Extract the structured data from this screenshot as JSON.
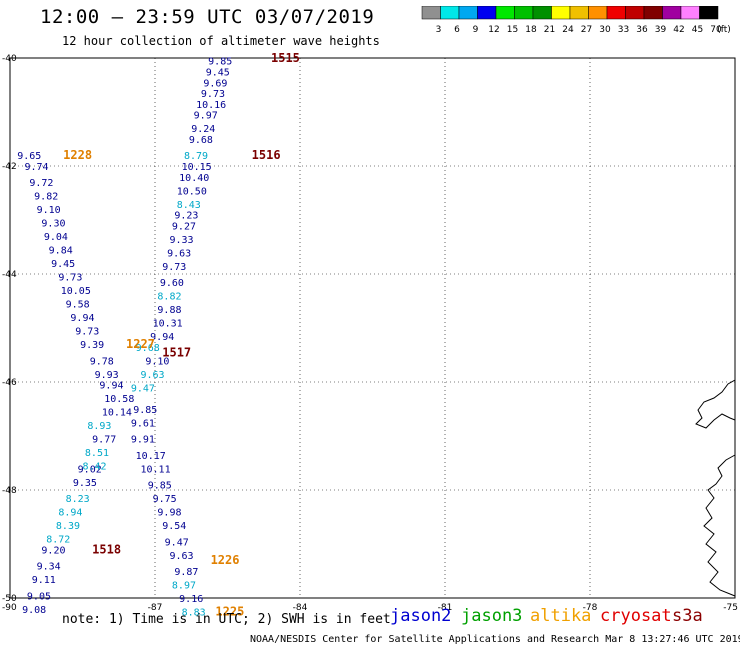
{
  "header": {
    "title": "12:00 – 23:59 UTC 03/07/2019",
    "subtitle": "12 hour collection of altimeter wave heights"
  },
  "colorbar": {
    "colors": [
      "#909090",
      "#00e8e8",
      "#00a8f0",
      "#0000f0",
      "#00e800",
      "#00c000",
      "#009000",
      "#ffff00",
      "#f0c000",
      "#ff9000",
      "#f00000",
      "#c00000",
      "#800000",
      "#a000a0",
      "#ff80ff",
      "#000000"
    ],
    "labels": [
      "3",
      "6",
      "9",
      "12",
      "15",
      "18",
      "21",
      "24",
      "27",
      "30",
      "33",
      "36",
      "39",
      "42",
      "45",
      "70"
    ],
    "unit": "(ft)"
  },
  "chart_data": {
    "type": "scatter",
    "title": "12:00 – 23:59 UTC 03/07/2019",
    "xlim": [
      -90,
      -75
    ],
    "ylim": [
      -50,
      -40
    ],
    "x_ticks": [
      "-90",
      "-87",
      "-84",
      "-81",
      "-78",
      "-75"
    ],
    "y_ticks": [
      "-40",
      "-42",
      "-44",
      "-46",
      "-48",
      "-50"
    ],
    "series": [
      {
        "name": "jason2",
        "color": "#000090",
        "points": [
          {
            "lon": -85.9,
            "lat": -40.05,
            "v": "9.85"
          },
          {
            "lon": -85.95,
            "lat": -40.25,
            "v": "9.45"
          },
          {
            "lon": -86.0,
            "lat": -40.45,
            "v": "9.69"
          },
          {
            "lon": -86.05,
            "lat": -40.65,
            "v": "9.73"
          },
          {
            "lon": -86.15,
            "lat": -40.85,
            "v": "10.16"
          },
          {
            "lon": -86.2,
            "lat": -41.05,
            "v": "9.97"
          },
          {
            "lon": -86.25,
            "lat": -41.3,
            "v": "9.24"
          },
          {
            "lon": -86.3,
            "lat": -41.5,
            "v": "9.68"
          },
          {
            "lon": -86.45,
            "lat": -42.0,
            "v": "10.15"
          },
          {
            "lon": -86.5,
            "lat": -42.2,
            "v": "10.40"
          },
          {
            "lon": -86.55,
            "lat": -42.45,
            "v": "10.50"
          },
          {
            "lon": -86.6,
            "lat": -42.9,
            "v": "9.23"
          },
          {
            "lon": -86.65,
            "lat": -43.1,
            "v": "9.27"
          },
          {
            "lon": -86.7,
            "lat": -43.35,
            "v": "9.33"
          },
          {
            "lon": -86.75,
            "lat": -43.6,
            "v": "9.63"
          },
          {
            "lon": -86.85,
            "lat": -43.85,
            "v": "9.73"
          },
          {
            "lon": -86.9,
            "lat": -44.15,
            "v": "9.60"
          },
          {
            "lon": -86.95,
            "lat": -44.65,
            "v": "9.88"
          },
          {
            "lon": -87.05,
            "lat": -44.9,
            "v": "10.31"
          },
          {
            "lon": -87.1,
            "lat": -45.15,
            "v": "9.94"
          },
          {
            "lon": -87.2,
            "lat": -45.6,
            "v": "9.10"
          },
          {
            "lon": -87.45,
            "lat": -46.5,
            "v": "9.85"
          },
          {
            "lon": -87.5,
            "lat": -46.75,
            "v": "9.61"
          },
          {
            "lon": -87.5,
            "lat": -47.05,
            "v": "9.91"
          },
          {
            "lon": -87.4,
            "lat": -47.35,
            "v": "10.17"
          },
          {
            "lon": -87.3,
            "lat": -47.6,
            "v": "10.11"
          },
          {
            "lon": -87.15,
            "lat": -47.9,
            "v": "9.85"
          },
          {
            "lon": -87.05,
            "lat": -48.15,
            "v": "9.75"
          },
          {
            "lon": -86.95,
            "lat": -48.4,
            "v": "9.98"
          },
          {
            "lon": -86.85,
            "lat": -48.65,
            "v": "9.54"
          },
          {
            "lon": -86.8,
            "lat": -48.95,
            "v": "9.47"
          },
          {
            "lon": -86.7,
            "lat": -49.2,
            "v": "9.63"
          },
          {
            "lon": -86.6,
            "lat": -49.5,
            "v": "9.87"
          },
          {
            "lon": -86.5,
            "lat": -50.0,
            "v": "9.16"
          },
          {
            "lon": -89.85,
            "lat": -41.8,
            "v": "9.65"
          },
          {
            "lon": -89.7,
            "lat": -42.0,
            "v": "9.74"
          },
          {
            "lon": -89.6,
            "lat": -42.3,
            "v": "9.72"
          },
          {
            "lon": -89.5,
            "lat": -42.55,
            "v": "9.82"
          },
          {
            "lon": -89.45,
            "lat": -42.8,
            "v": "9.10"
          },
          {
            "lon": -89.35,
            "lat": -43.05,
            "v": "9.30"
          },
          {
            "lon": -89.3,
            "lat": -43.3,
            "v": "9.04"
          },
          {
            "lon": -89.2,
            "lat": -43.55,
            "v": "9.84"
          },
          {
            "lon": -89.15,
            "lat": -43.8,
            "v": "9.45"
          },
          {
            "lon": -89.0,
            "lat": -44.05,
            "v": "9.73"
          },
          {
            "lon": -88.95,
            "lat": -44.3,
            "v": "10.05"
          },
          {
            "lon": -88.85,
            "lat": -44.55,
            "v": "9.58"
          },
          {
            "lon": -88.75,
            "lat": -44.8,
            "v": "9.94"
          },
          {
            "lon": -88.65,
            "lat": -45.05,
            "v": "9.73"
          },
          {
            "lon": -88.55,
            "lat": -45.3,
            "v": "9.39"
          },
          {
            "lon": -88.35,
            "lat": -45.6,
            "v": "9.78"
          },
          {
            "lon": -88.25,
            "lat": -45.85,
            "v": "9.93"
          },
          {
            "lon": -88.15,
            "lat": -46.05,
            "v": "9.94"
          },
          {
            "lon": -88.05,
            "lat": -46.3,
            "v": "10.58"
          },
          {
            "lon": -88.1,
            "lat": -46.55,
            "v": "10.14"
          },
          {
            "lon": -88.3,
            "lat": -47.05,
            "v": "9.77"
          },
          {
            "lon": -88.6,
            "lat": -47.6,
            "v": "9.02"
          },
          {
            "lon": -88.7,
            "lat": -47.85,
            "v": "9.35"
          },
          {
            "lon": -89.35,
            "lat": -49.1,
            "v": "9.20"
          },
          {
            "lon": -89.45,
            "lat": -49.4,
            "v": "9.34"
          },
          {
            "lon": -89.55,
            "lat": -49.65,
            "v": "9.11"
          },
          {
            "lon": -89.65,
            "lat": -49.95,
            "v": "9.05"
          },
          {
            "lon": -89.75,
            "lat": -50.2,
            "v": "9.08"
          }
        ]
      },
      {
        "name": "",
        "color": "#00a8c8",
        "points": [
          {
            "lon": -86.4,
            "lat": -41.8,
            "v": "8.79"
          },
          {
            "lon": -86.55,
            "lat": -42.7,
            "v": "8.43"
          },
          {
            "lon": -86.95,
            "lat": -44.4,
            "v": "8.82"
          },
          {
            "lon": -87.4,
            "lat": -45.35,
            "v": "9.68"
          },
          {
            "lon": -87.3,
            "lat": -45.85,
            "v": "9.63"
          },
          {
            "lon": -87.5,
            "lat": -46.1,
            "v": "9.47"
          },
          {
            "lon": -88.4,
            "lat": -46.8,
            "v": "8.93"
          },
          {
            "lon": -88.45,
            "lat": -47.3,
            "v": "8.51"
          },
          {
            "lon": -88.5,
            "lat": -47.55,
            "v": "8.42"
          },
          {
            "lon": -88.85,
            "lat": -48.15,
            "v": "8.23"
          },
          {
            "lon": -89.0,
            "lat": -48.4,
            "v": "8.94"
          },
          {
            "lon": -89.05,
            "lat": -48.65,
            "v": "8.39"
          },
          {
            "lon": -89.25,
            "lat": -48.9,
            "v": "8.72"
          },
          {
            "lon": -86.65,
            "lat": -49.75,
            "v": "8.97"
          },
          {
            "lon": -86.45,
            "lat": -50.25,
            "v": "8.83"
          }
        ]
      }
    ],
    "pass_labels": [
      {
        "lon": -84.6,
        "lat": -40.0,
        "text": "1515",
        "color": "#7a0000"
      },
      {
        "lon": -85.0,
        "lat": -41.8,
        "text": "1516",
        "color": "#7a0000"
      },
      {
        "lon": -86.85,
        "lat": -45.45,
        "text": "1517",
        "color": "#7a0000"
      },
      {
        "lon": -88.3,
        "lat": -49.1,
        "text": "1518",
        "color": "#7a0000"
      },
      {
        "lon": -88.9,
        "lat": -41.8,
        "text": "1228",
        "color": "#e08000"
      },
      {
        "lon": -87.6,
        "lat": -45.3,
        "text": "1227",
        "color": "#e08000"
      },
      {
        "lon": -85.85,
        "lat": -49.3,
        "text": "1226",
        "color": "#e08000"
      },
      {
        "lon": -85.75,
        "lat": -50.25,
        "text": "1225",
        "color": "#e08000"
      }
    ]
  },
  "footer": {
    "note": "note: 1) Time is in UTC; 2) SWH is in feet",
    "credit": "NOAA/NESDIS Center for Satellite Applications and Research   Mar  8 13:27:46 UTC 2019",
    "legend": [
      {
        "label": "jason2",
        "color": "#0000d0"
      },
      {
        "label": "jason3",
        "color": "#00a000"
      },
      {
        "label": "altika",
        "color": "#f0a000"
      },
      {
        "label": "cryosat",
        "color": "#e00000"
      },
      {
        "label": "s3a",
        "color": "#8b0000"
      }
    ]
  }
}
